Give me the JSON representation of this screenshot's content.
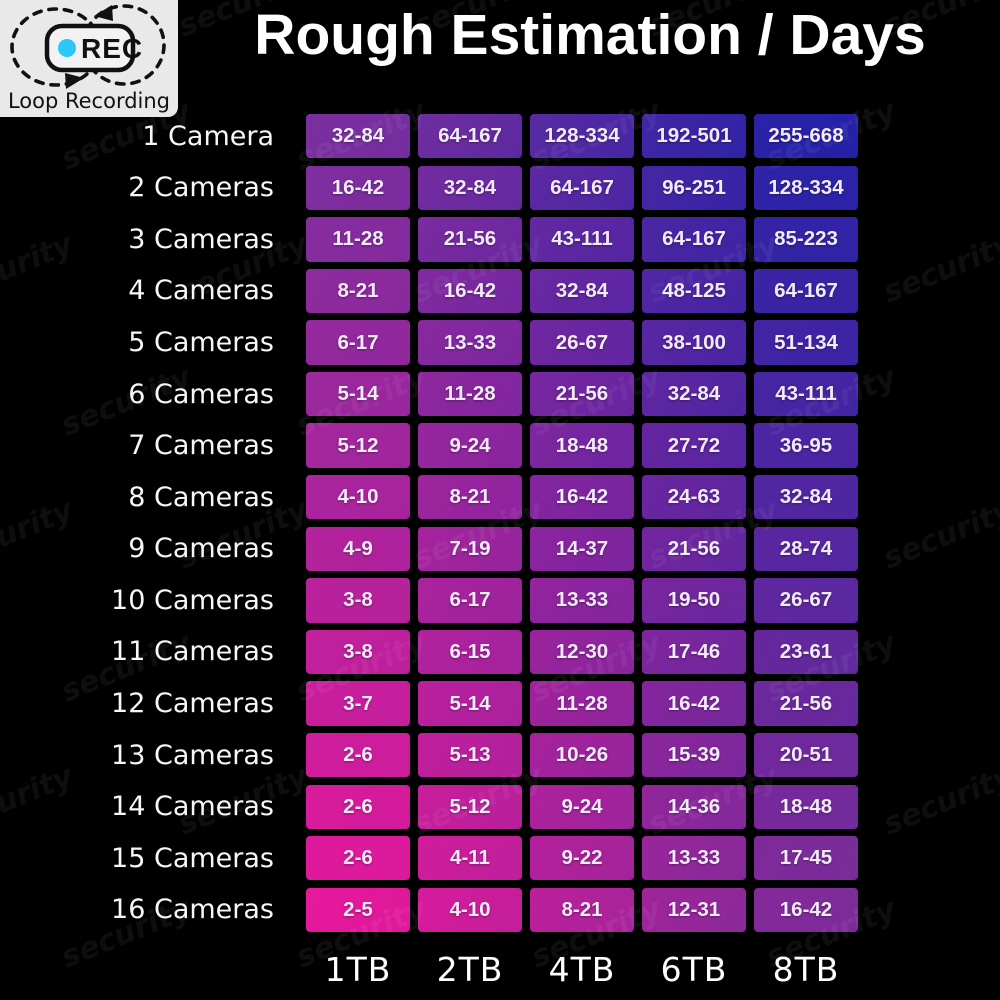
{
  "title": "Rough Estimation / Days",
  "badge": {
    "rec_label": "REC",
    "caption": "Loop Recording",
    "dot_color": "#29c8f6",
    "background": "#e9e9e9",
    "ink": "#111111"
  },
  "watermark": {
    "text": "security"
  },
  "colors": {
    "page_background": "#000000",
    "title_text": "#ffffff",
    "cell_text": "#f2eaf8",
    "label_text": "#f7f7f7",
    "gradient_corners": {
      "top_left": "#7B2F9E",
      "top_right": "#2121A8",
      "bottom_left": "#EA179B",
      "bottom_right": "#7B2C99"
    }
  },
  "chart_data": {
    "type": "heatmap",
    "title": "Rough Estimation / Days",
    "unit": "days of loop recording",
    "columns": [
      "1TB",
      "2TB",
      "4TB",
      "6TB",
      "8TB"
    ],
    "rows": [
      "1 Camera",
      "2 Cameras",
      "3 Cameras",
      "4 Cameras",
      "5 Cameras",
      "6 Cameras",
      "7 Cameras",
      "8 Cameras",
      "9 Cameras",
      "10 Cameras",
      "11 Cameras",
      "12 Cameras",
      "13 Cameras",
      "14 Cameras",
      "15 Cameras",
      "16 Cameras"
    ],
    "values": [
      [
        "32-84",
        "64-167",
        "128-334",
        "192-501",
        "255-668"
      ],
      [
        "16-42",
        "32-84",
        "64-167",
        "96-251",
        "128-334"
      ],
      [
        "11-28",
        "21-56",
        "43-111",
        "64-167",
        "85-223"
      ],
      [
        "8-21",
        "16-42",
        "32-84",
        "48-125",
        "64-167"
      ],
      [
        "6-17",
        "13-33",
        "26-67",
        "38-100",
        "51-134"
      ],
      [
        "5-14",
        "11-28",
        "21-56",
        "32-84",
        "43-111"
      ],
      [
        "5-12",
        "9-24",
        "18-48",
        "27-72",
        "36-95"
      ],
      [
        "4-10",
        "8-21",
        "16-42",
        "24-63",
        "32-84"
      ],
      [
        "4-9",
        "7-19",
        "14-37",
        "21-56",
        "28-74"
      ],
      [
        "3-8",
        "6-17",
        "13-33",
        "19-50",
        "26-67"
      ],
      [
        "3-8",
        "6-15",
        "12-30",
        "17-46",
        "23-61"
      ],
      [
        "3-7",
        "5-14",
        "11-28",
        "16-42",
        "21-56"
      ],
      [
        "2-6",
        "5-13",
        "10-26",
        "15-39",
        "20-51"
      ],
      [
        "2-6",
        "5-12",
        "9-24",
        "14-36",
        "18-48"
      ],
      [
        "2-6",
        "4-11",
        "9-22",
        "13-33",
        "17-45"
      ],
      [
        "2-5",
        "4-10",
        "8-21",
        "12-31",
        "16-42"
      ]
    ],
    "legend_position": "none",
    "grid": false
  }
}
